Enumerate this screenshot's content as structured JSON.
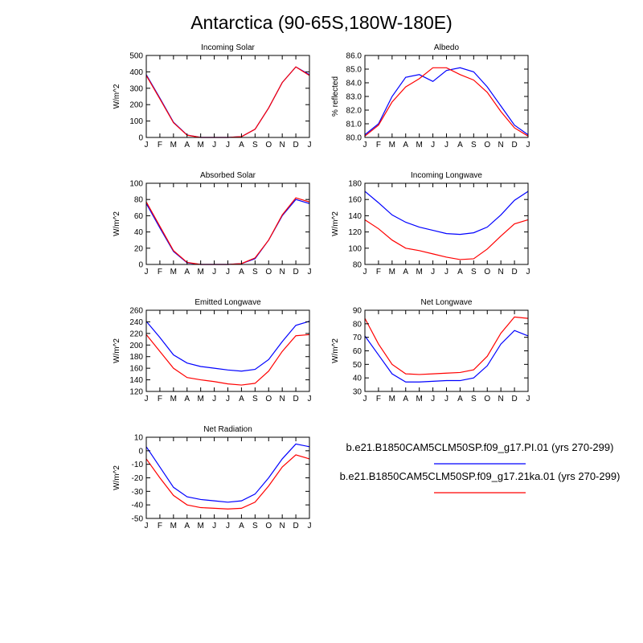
{
  "title": "Antarctica (90-65S,180W-180E)",
  "colors": {
    "series_pi": "#0000ff",
    "series_21ka": "#ff0000"
  },
  "legend": [
    {
      "label": "b.e21.B1850CAM5CLM50SP.f09_g17.PI.01 (yrs 270-299)",
      "color": "#0000ff"
    },
    {
      "label": "b.e21.B1850CAM5CLM50SP.f09_g17.21ka.01 (yrs 270-299)",
      "color": "#ff0000"
    }
  ],
  "chart_data": [
    {
      "type": "line",
      "title": "Incoming Solar",
      "ylabel": "W/m^2",
      "ylim": [
        0,
        500
      ],
      "yticks": [
        0,
        100,
        200,
        300,
        400,
        500
      ],
      "x": [
        "J",
        "F",
        "M",
        "A",
        "M",
        "J",
        "J",
        "A",
        "S",
        "O",
        "N",
        "D",
        "J"
      ],
      "series": [
        {
          "color": "#0000ff",
          "values": [
            383,
            240,
            93,
            15,
            0,
            0,
            0,
            5,
            50,
            180,
            335,
            430,
            383
          ]
        },
        {
          "color": "#ff0000",
          "values": [
            378,
            235,
            90,
            14,
            0,
            0,
            0,
            5,
            50,
            180,
            335,
            430,
            378
          ]
        }
      ]
    },
    {
      "type": "line",
      "title": "Albedo",
      "ylabel": "% reflected",
      "ylim": [
        80.0,
        86.0
      ],
      "yticks": [
        "80.0",
        "81.0",
        "82.0",
        "83.0",
        "84.0",
        "85.0",
        "86.0"
      ],
      "x": [
        "J",
        "F",
        "M",
        "A",
        "M",
        "J",
        "J",
        "A",
        "S",
        "O",
        "N",
        "D",
        "J"
      ],
      "series": [
        {
          "color": "#0000ff",
          "values": [
            80.2,
            81.0,
            83.0,
            84.4,
            84.6,
            84.1,
            84.9,
            85.1,
            84.8,
            83.7,
            82.3,
            80.9,
            80.2
          ]
        },
        {
          "color": "#ff0000",
          "values": [
            80.1,
            80.9,
            82.6,
            83.7,
            84.3,
            85.1,
            85.1,
            84.6,
            84.2,
            83.3,
            81.9,
            80.7,
            80.1
          ]
        }
      ]
    },
    {
      "type": "line",
      "title": "Absorbed Solar",
      "ylabel": "W/m^2",
      "ylim": [
        0,
        100
      ],
      "yticks": [
        0,
        20,
        40,
        60,
        80,
        100
      ],
      "x": [
        "J",
        "F",
        "M",
        "A",
        "M",
        "J",
        "J",
        "A",
        "S",
        "O",
        "N",
        "D",
        "J"
      ],
      "series": [
        {
          "color": "#0000ff",
          "values": [
            75,
            45,
            16,
            2,
            0,
            0,
            0,
            1,
            7,
            30,
            60,
            80,
            75
          ]
        },
        {
          "color": "#ff0000",
          "values": [
            77,
            47,
            17,
            2.5,
            0,
            0,
            0,
            1,
            8,
            30,
            61,
            82,
            77
          ]
        }
      ]
    },
    {
      "type": "line",
      "title": "Incoming Longwave",
      "ylabel": "W/m^2",
      "ylim": [
        80,
        180
      ],
      "yticks": [
        80,
        100,
        120,
        140,
        160,
        180
      ],
      "x": [
        "J",
        "F",
        "M",
        "A",
        "M",
        "J",
        "J",
        "A",
        "S",
        "O",
        "N",
        "D",
        "J"
      ],
      "series": [
        {
          "color": "#0000ff",
          "values": [
            170,
            156,
            141,
            132,
            126,
            122,
            118,
            117,
            119,
            126,
            141,
            159,
            170
          ]
        },
        {
          "color": "#ff0000",
          "values": [
            135,
            124,
            110,
            100,
            97,
            93,
            89,
            86,
            87,
            99,
            115,
            130,
            135
          ]
        }
      ]
    },
    {
      "type": "line",
      "title": "Emitted Longwave",
      "ylabel": "W/m^2",
      "ylim": [
        120,
        260
      ],
      "yticks": [
        120,
        140,
        160,
        180,
        200,
        220,
        240,
        260
      ],
      "x": [
        "J",
        "F",
        "M",
        "A",
        "M",
        "J",
        "J",
        "A",
        "S",
        "O",
        "N",
        "D",
        "J"
      ],
      "series": [
        {
          "color": "#0000ff",
          "values": [
            241,
            213,
            183,
            169,
            163,
            160,
            157,
            155,
            158,
            175,
            206,
            234,
            241
          ]
        },
        {
          "color": "#ff0000",
          "values": [
            218,
            189,
            160,
            144,
            140,
            137,
            133,
            131,
            134,
            155,
            189,
            216,
            218
          ]
        }
      ]
    },
    {
      "type": "line",
      "title": "Net Longwave",
      "ylabel": "W/m^2",
      "ylim": [
        30,
        90
      ],
      "yticks": [
        30,
        40,
        50,
        60,
        70,
        80,
        90
      ],
      "x": [
        "J",
        "F",
        "M",
        "A",
        "M",
        "J",
        "J",
        "A",
        "S",
        "O",
        "N",
        "D",
        "J"
      ],
      "series": [
        {
          "color": "#0000ff",
          "values": [
            71,
            57,
            43,
            37,
            37,
            37.5,
            38,
            38,
            40,
            49,
            65,
            75,
            71
          ]
        },
        {
          "color": "#ff0000",
          "values": [
            84,
            65,
            50,
            43,
            42.5,
            43,
            43.5,
            44,
            46,
            56,
            73,
            85,
            84
          ]
        }
      ]
    },
    {
      "type": "line",
      "title": "Net Radiation",
      "ylabel": "W/m^2",
      "ylim": [
        -50,
        10
      ],
      "yticks": [
        -50,
        -40,
        -30,
        -20,
        -10,
        0,
        10
      ],
      "x": [
        "J",
        "F",
        "M",
        "A",
        "M",
        "J",
        "J",
        "A",
        "S",
        "O",
        "N",
        "D",
        "J"
      ],
      "series": [
        {
          "color": "#0000ff",
          "values": [
            3,
            -12,
            -27,
            -34,
            -36,
            -37,
            -38,
            -37,
            -32,
            -20,
            -6,
            5,
            3
          ]
        },
        {
          "color": "#ff0000",
          "values": [
            -6,
            -20,
            -33,
            -40,
            -42,
            -42.5,
            -43,
            -42.5,
            -38,
            -26,
            -12,
            -3,
            -6
          ]
        }
      ]
    }
  ]
}
